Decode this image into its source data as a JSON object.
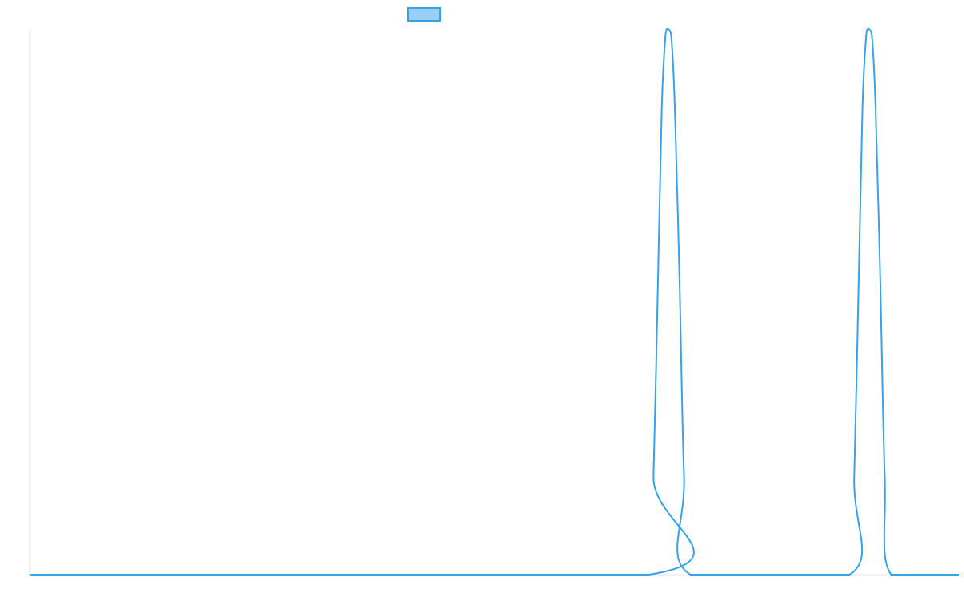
{
  "chart_data": {
    "type": "line",
    "title": "",
    "xlabel": "",
    "ylabel": "",
    "grid": false,
    "legend": {
      "placement": "top-center",
      "entries": [
        {
          "label": "",
          "color": "#36a2eb",
          "fill": "#9ad0f5"
        }
      ]
    },
    "xlim": [
      0,
      100
    ],
    "ylim": [
      0,
      1
    ],
    "series": [
      {
        "color": "#36a2eb",
        "x": [
          0,
          66.6,
          67.1,
          67.6,
          68.0,
          68.4,
          68.6,
          69.0,
          69.4,
          69.9,
          70.4,
          71.1,
          88.2,
          88.7,
          89.2,
          89.6,
          90.0,
          90.2,
          90.6,
          91.0,
          91.5,
          92.0,
          92.7,
          100
        ],
        "y": [
          0,
          0,
          0.18,
          0.55,
          0.86,
          0.99,
          1.0,
          0.99,
          0.86,
          0.55,
          0.18,
          0,
          0,
          0.18,
          0.55,
          0.86,
          0.99,
          1.0,
          0.99,
          0.86,
          0.55,
          0.18,
          0,
          0
        ]
      }
    ]
  }
}
